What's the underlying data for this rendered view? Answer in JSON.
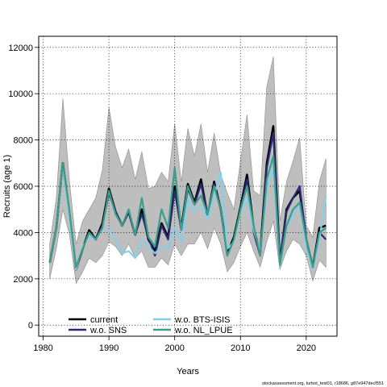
{
  "footer": "stockassessment.org, turbot_test01, r18686, g87e947decf551",
  "chart_data": {
    "type": "line",
    "title": "",
    "xlabel": "Years",
    "ylabel": "Recruits (age 1)",
    "xlim": [
      1981,
      2023
    ],
    "ylim": [
      0,
      12000
    ],
    "xticks": [
      1980,
      1990,
      2000,
      2010,
      2020
    ],
    "yticks": [
      0,
      2000,
      4000,
      6000,
      8000,
      10000,
      12000
    ],
    "grid": true,
    "legend_position": "bottom-left",
    "x": [
      1981,
      1982,
      1983,
      1984,
      1985,
      1986,
      1987,
      1988,
      1989,
      1990,
      1991,
      1992,
      1993,
      1994,
      1995,
      1996,
      1997,
      1998,
      1999,
      2000,
      2001,
      2002,
      2003,
      2004,
      2005,
      2006,
      2007,
      2008,
      2009,
      2010,
      2011,
      2012,
      2013,
      2014,
      2015,
      2016,
      2017,
      2018,
      2019,
      2020,
      2021,
      2022,
      2023
    ],
    "band": {
      "color": "#bebebe",
      "lower": [
        2000,
        3300,
        5000,
        3900,
        1800,
        2300,
        2900,
        2700,
        3000,
        3600,
        3400,
        3000,
        3500,
        2900,
        3200,
        2500,
        2500,
        2900,
        2600,
        3500,
        3000,
        3500,
        3500,
        4000,
        3300,
        4200,
        3500,
        2300,
        2700,
        3400,
        4000,
        3200,
        2500,
        3600,
        4500,
        2400,
        3200,
        3700,
        3500,
        3000,
        1900,
        2800,
        2500
      ],
      "upper": [
        3500,
        5500,
        9800,
        6200,
        3500,
        4500,
        5000,
        5500,
        6700,
        9400,
        7700,
        6800,
        7600,
        6300,
        7500,
        5900,
        6000,
        6600,
        6200,
        8700,
        6200,
        8500,
        7300,
        8700,
        6600,
        8300,
        6500,
        5700,
        5000,
        7100,
        9100,
        5800,
        5600,
        10300,
        11600,
        4500,
        6200,
        7100,
        8100,
        4300,
        3800,
        6200,
        7200
      ]
    },
    "series": [
      {
        "name": "current",
        "color": "#000000",
        "dash": "",
        "values": [
          2700,
          4200,
          7000,
          4800,
          2400,
          3300,
          4100,
          3700,
          4400,
          5900,
          4900,
          4300,
          4900,
          3900,
          5000,
          3700,
          3200,
          4400,
          3800,
          6000,
          4200,
          6100,
          5300,
          6300,
          4700,
          6200,
          5000,
          3100,
          3800,
          5100,
          6500,
          4200,
          3100,
          7000,
          8600,
          2700,
          5000,
          5500,
          5800,
          3700,
          2500,
          4200,
          4300
        ]
      },
      {
        "name": "w.o. SNS",
        "color": "#2a2a72",
        "dash": "",
        "values": [
          2700,
          4200,
          7000,
          4800,
          2400,
          3300,
          4000,
          3700,
          4300,
          5700,
          4900,
          4300,
          4900,
          3900,
          4800,
          3800,
          3000,
          4300,
          3700,
          5800,
          4100,
          5900,
          5200,
          6100,
          4700,
          6100,
          5000,
          3000,
          3700,
          5000,
          6300,
          4000,
          3000,
          6800,
          8300,
          2800,
          4900,
          5500,
          6000,
          3700,
          2500,
          4000,
          3700
        ]
      },
      {
        "name": "w.o. BTS-ISIS",
        "color": "#87ceeb",
        "dash": "",
        "values": [
          2700,
          4200,
          6900,
          4600,
          2400,
          3400,
          3800,
          3700,
          4200,
          4100,
          3700,
          3100,
          3200,
          2900,
          3700,
          3400,
          3100,
          3400,
          3300,
          4200,
          3600,
          5400,
          4900,
          5200,
          4600,
          5600,
          6600,
          3300,
          3600,
          4900,
          5500,
          4100,
          3200,
          5900,
          6800,
          2600,
          4300,
          4700,
          5300,
          3300,
          2400,
          3700,
          5600
        ]
      },
      {
        "name": "w.o. NL_LPUE",
        "color": "#3a9e8a",
        "dash": "",
        "values": [
          2700,
          4200,
          7000,
          4900,
          2500,
          3300,
          4000,
          3700,
          4200,
          5800,
          4800,
          4300,
          5000,
          3900,
          5500,
          3800,
          3400,
          5000,
          4200,
          6800,
          4100,
          6000,
          5200,
          5600,
          4800,
          6000,
          5000,
          3000,
          3700,
          5000,
          6000,
          4300,
          3000,
          6300,
          7300,
          2600,
          4300,
          5000,
          5300,
          3700,
          2500,
          4000,
          4200
        ]
      }
    ]
  }
}
